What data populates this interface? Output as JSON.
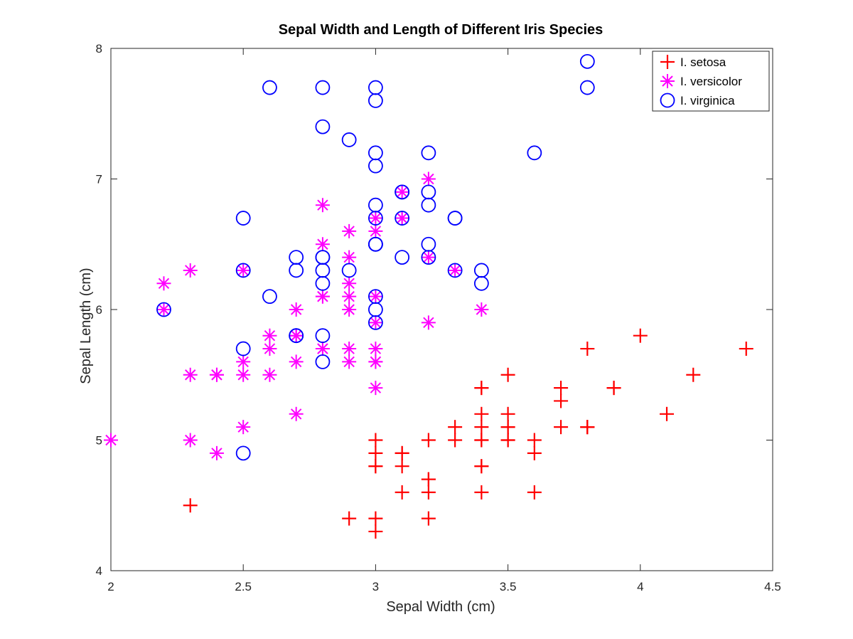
{
  "chart_data": {
    "type": "scatter",
    "title": "Sepal Width and Length of Different Iris Species",
    "xlabel": "Sepal Width (cm)",
    "ylabel": "Sepal Length (cm)",
    "xlim": [
      2,
      4.5
    ],
    "ylim": [
      4,
      8
    ],
    "xticks": [
      "2",
      "2.5",
      "3",
      "3.5",
      "4",
      "4.5"
    ],
    "yticks": [
      "4",
      "5",
      "6",
      "7",
      "8"
    ],
    "grid": false,
    "legend_position": "top-right",
    "series": [
      {
        "name": "I. setosa",
        "marker": "plus",
        "color": "#ff0000",
        "x": [
          3.5,
          3.0,
          3.2,
          3.1,
          3.6,
          3.9,
          3.4,
          3.4,
          2.9,
          3.1,
          3.7,
          3.4,
          3.0,
          3.0,
          4.0,
          4.4,
          3.9,
          3.5,
          3.8,
          3.8,
          3.4,
          3.7,
          3.6,
          3.3,
          3.4,
          3.0,
          3.4,
          3.5,
          3.4,
          3.2,
          3.1,
          3.4,
          4.1,
          4.2,
          3.1,
          3.2,
          3.5,
          3.6,
          3.0,
          3.4,
          3.5,
          2.3,
          3.2,
          3.5,
          3.8,
          3.0,
          3.8,
          3.2,
          3.7,
          3.3
        ],
        "y": [
          5.1,
          4.9,
          4.7,
          4.6,
          5.0,
          5.4,
          4.6,
          5.0,
          4.4,
          4.9,
          5.4,
          4.8,
          4.8,
          4.3,
          5.8,
          5.7,
          5.4,
          5.1,
          5.7,
          5.1,
          5.4,
          5.1,
          4.6,
          5.1,
          4.8,
          5.0,
          5.0,
          5.2,
          5.2,
          4.7,
          4.8,
          5.4,
          5.2,
          5.5,
          4.9,
          5.0,
          5.5,
          4.9,
          4.4,
          5.1,
          5.0,
          4.5,
          4.4,
          5.0,
          5.1,
          4.8,
          5.1,
          4.6,
          5.3,
          5.0
        ]
      },
      {
        "name": "I. versicolor",
        "marker": "asterisk",
        "color": "#ff00ff",
        "x": [
          3.2,
          3.2,
          3.1,
          2.3,
          2.8,
          2.8,
          3.3,
          2.4,
          2.9,
          2.7,
          2.0,
          3.0,
          2.2,
          2.9,
          2.9,
          3.1,
          3.0,
          2.7,
          2.2,
          2.5,
          3.2,
          2.8,
          2.5,
          2.8,
          2.9,
          3.0,
          2.8,
          3.0,
          2.9,
          2.6,
          2.4,
          2.4,
          2.7,
          2.7,
          3.0,
          3.4,
          3.1,
          2.3,
          3.0,
          2.5,
          2.6,
          3.0,
          2.6,
          2.3,
          2.7,
          3.0,
          2.9,
          2.9,
          2.5,
          2.8
        ],
        "y": [
          7.0,
          6.4,
          6.9,
          5.5,
          6.5,
          5.7,
          6.3,
          4.9,
          6.6,
          5.2,
          5.0,
          5.9,
          6.0,
          6.1,
          5.6,
          6.7,
          5.6,
          5.8,
          6.2,
          5.6,
          5.9,
          6.1,
          6.3,
          6.1,
          6.4,
          6.6,
          6.8,
          6.7,
          6.0,
          5.7,
          5.5,
          5.5,
          5.8,
          6.0,
          5.4,
          6.0,
          6.7,
          6.3,
          5.6,
          5.5,
          5.5,
          6.1,
          5.8,
          5.0,
          5.6,
          5.7,
          5.7,
          6.2,
          5.1,
          5.7
        ]
      },
      {
        "name": "I. virginica",
        "marker": "circle",
        "color": "#0000ff",
        "x": [
          3.3,
          2.7,
          3.0,
          2.9,
          3.0,
          3.0,
          2.5,
          2.9,
          2.5,
          3.6,
          3.2,
          2.7,
          3.0,
          2.5,
          2.8,
          3.2,
          3.0,
          3.8,
          2.6,
          2.2,
          3.2,
          2.8,
          2.8,
          2.7,
          3.3,
          3.2,
          2.8,
          3.0,
          2.8,
          3.0,
          2.8,
          3.8,
          2.8,
          2.8,
          2.6,
          3.0,
          3.4,
          3.1,
          3.0,
          3.1,
          3.1,
          3.1,
          2.7,
          3.2,
          3.3,
          3.0,
          2.5,
          3.0,
          3.4,
          3.0
        ],
        "y": [
          6.3,
          5.8,
          7.1,
          6.3,
          6.5,
          7.6,
          4.9,
          7.3,
          6.7,
          7.2,
          6.5,
          6.4,
          6.8,
          5.7,
          5.8,
          6.4,
          6.5,
          7.7,
          7.7,
          6.0,
          6.9,
          5.6,
          7.7,
          6.3,
          6.7,
          7.2,
          6.2,
          6.1,
          6.4,
          7.2,
          7.4,
          7.9,
          6.4,
          6.3,
          6.1,
          7.7,
          6.3,
          6.4,
          6.0,
          6.9,
          6.7,
          6.9,
          5.8,
          6.8,
          6.7,
          6.7,
          6.3,
          6.5,
          6.2,
          5.9
        ]
      }
    ]
  }
}
